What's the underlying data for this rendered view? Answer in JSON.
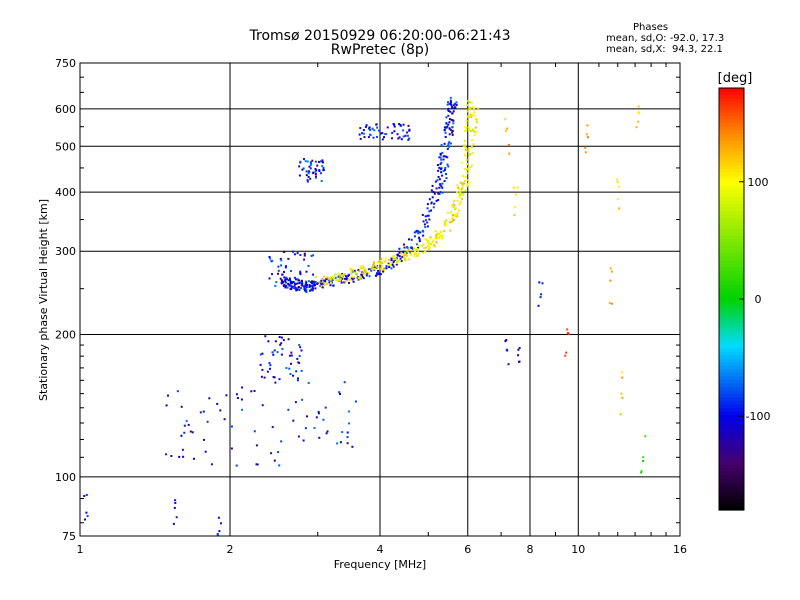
{
  "header": {
    "title_line1": "Tromsø 20150929 06:20:00-06:21:43",
    "title_line2": "RwPretec (8p)"
  },
  "stats": {
    "heading": "Phases",
    "line_o": "mean, sd,O: -92.0, 17.3",
    "line_x": "mean, sd,X:  94.3, 22.1"
  },
  "colorbar": {
    "label": "[deg]",
    "ticks": [
      100,
      0,
      -100
    ],
    "range": [
      -180,
      180
    ]
  },
  "chart_data": {
    "type": "scatter",
    "xlabel": "Frequency [MHz]",
    "ylabel": "Stationary phase Virtual Height [km]",
    "xscale": "log",
    "yscale": "log",
    "xlim": [
      1,
      16
    ],
    "ylim": [
      75,
      750
    ],
    "xticks": [
      1,
      2,
      4,
      6,
      8,
      10,
      16
    ],
    "yticks": [
      75,
      100,
      200,
      300,
      400,
      500,
      600,
      750
    ],
    "grid": true,
    "color_variable": "phase [deg]",
    "traces": [
      {
        "x": [
          2.55,
          2.6,
          2.7,
          2.8,
          2.9,
          3.0,
          3.2,
          3.4,
          3.7,
          4.0,
          4.3,
          4.6,
          4.9,
          5.1,
          5.3,
          5.4,
          5.5,
          5.55,
          5.6
        ],
        "y": [
          265,
          258,
          255,
          253,
          252,
          254,
          258,
          262,
          268,
          275,
          287,
          305,
          335,
          380,
          430,
          480,
          540,
          590,
          630
        ],
        "phase": -100
      },
      {
        "x": [
          3.0,
          3.3,
          3.6,
          3.9,
          4.2,
          4.5,
          4.8,
          5.1,
          5.4,
          5.6,
          5.8,
          5.95,
          6.05,
          6.1,
          6.15
        ],
        "y": [
          258,
          262,
          270,
          278,
          285,
          292,
          300,
          315,
          335,
          360,
          395,
          440,
          500,
          560,
          620
        ],
        "phase": 100
      }
    ],
    "clusters": [
      {
        "x_range": [
          1.45,
          3.6
        ],
        "y_range": [
          105,
          160
        ],
        "phase": -100
      },
      {
        "x_range": [
          2.3,
          2.8
        ],
        "y_range": [
          160,
          200
        ],
        "phase": -100
      },
      {
        "x_range": [
          2.4,
          2.95
        ],
        "y_range": [
          250,
          300
        ],
        "phase": -100
      },
      {
        "x_range": [
          2.75,
          3.1
        ],
        "y_range": [
          420,
          470
        ],
        "phase": -100
      },
      {
        "x_range": [
          3.6,
          4.6
        ],
        "y_range": [
          515,
          560
        ],
        "phase": -100
      }
    ],
    "scattered_points": [
      {
        "x": 7.2,
        "y": 545,
        "phase": 130
      },
      {
        "x": 7.5,
        "y": 395,
        "phase": 110
      },
      {
        "x": 7.2,
        "y": 185,
        "phase": -100
      },
      {
        "x": 7.6,
        "y": 175,
        "phase": -120
      },
      {
        "x": 10.4,
        "y": 530,
        "phase": 130
      },
      {
        "x": 12.0,
        "y": 420,
        "phase": 110
      },
      {
        "x": 13.2,
        "y": 590,
        "phase": 110
      },
      {
        "x": 11.6,
        "y": 260,
        "phase": 140
      },
      {
        "x": 12.2,
        "y": 150,
        "phase": 120
      },
      {
        "x": 13.5,
        "y": 110,
        "phase": 20
      },
      {
        "x": 9.5,
        "y": 205,
        "phase": 160
      },
      {
        "x": 8.4,
        "y": 240,
        "phase": -90
      },
      {
        "x": 1.03,
        "y": 84,
        "phase": -100
      },
      {
        "x": 1.9,
        "y": 82,
        "phase": -100
      },
      {
        "x": 1.55,
        "y": 86,
        "phase": -110
      }
    ]
  }
}
